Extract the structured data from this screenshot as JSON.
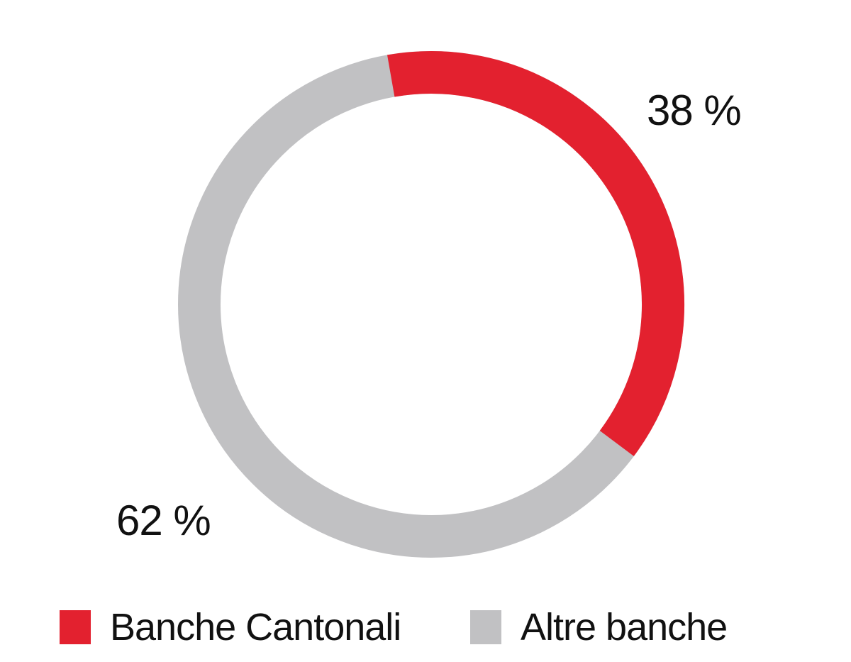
{
  "chart_data": {
    "type": "pie",
    "subtype": "donut",
    "categories": [
      "Banche Cantonali",
      "Altre banche"
    ],
    "values": [
      38,
      62
    ],
    "unit": "%",
    "series_colors": [
      "#e3212f",
      "#c1c1c3"
    ],
    "data_labels": [
      "38 %",
      "62 %"
    ],
    "title": "",
    "legend_position": "bottom",
    "start_angle_deg": -10,
    "direction": "clockwise",
    "ring_thickness_px": 60,
    "background": "#ffffff"
  },
  "labels": {
    "banche_cantonali_pct": "38 %",
    "altre_banche_pct": "62 %"
  },
  "legend": {
    "items": [
      {
        "label": "Banche Cantonali",
        "color": "#e3212f"
      },
      {
        "label": "Altre banche",
        "color": "#c1c1c3"
      }
    ]
  },
  "colors": {
    "accent_red": "#e3212f",
    "neutral_gray": "#c1c1c3",
    "text": "#111111",
    "background": "#ffffff"
  }
}
